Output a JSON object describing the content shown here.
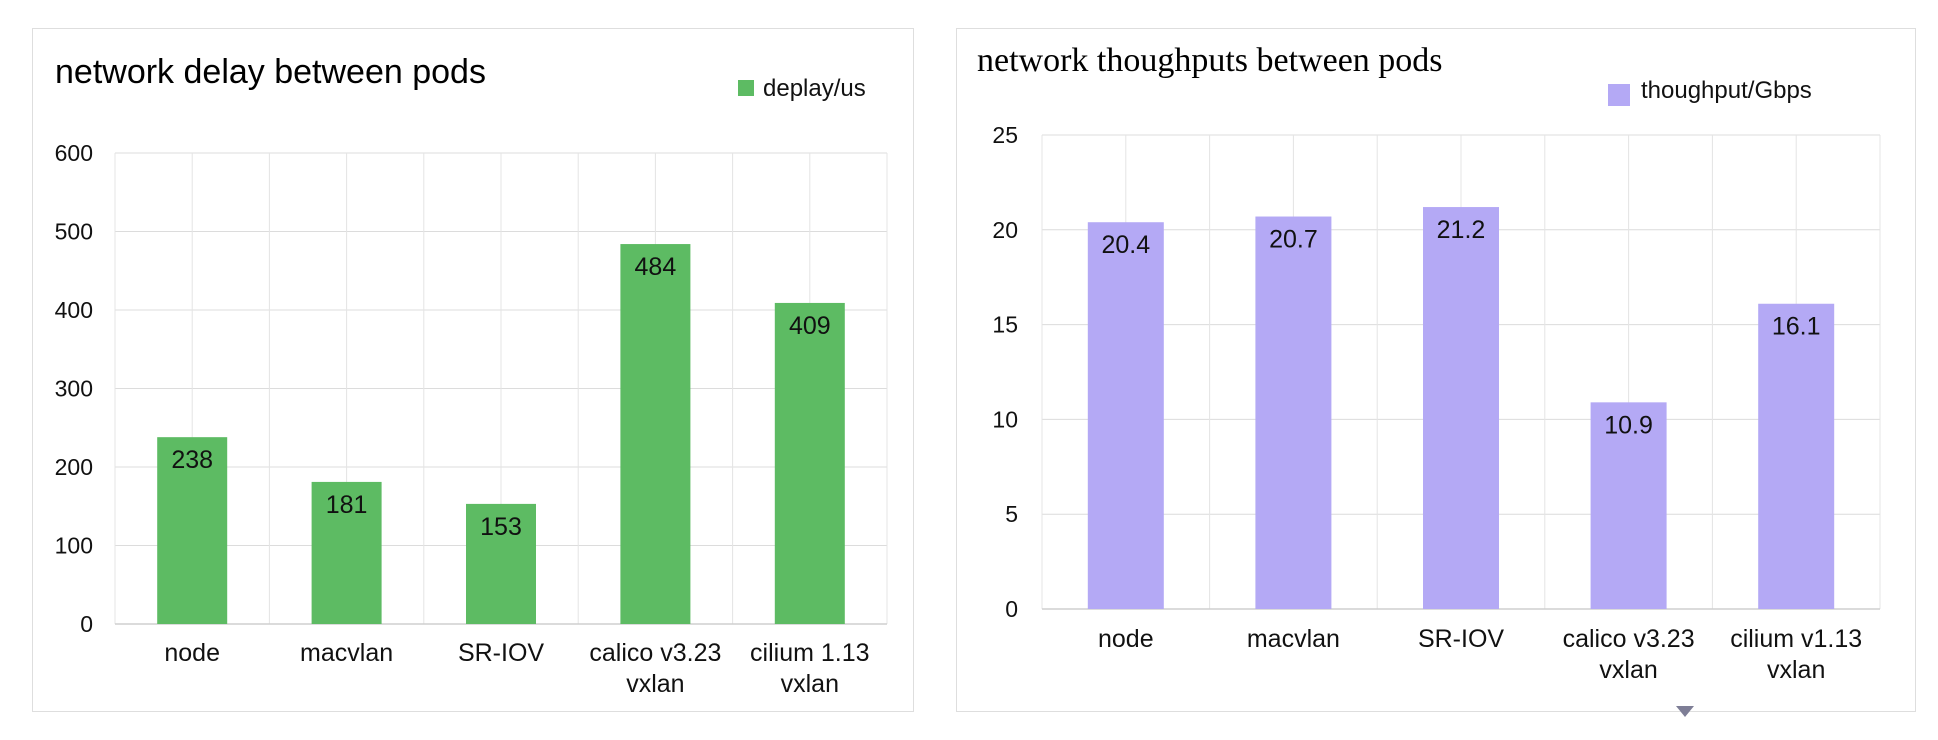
{
  "chart_data": [
    {
      "type": "bar",
      "title": "network delay between pods",
      "legend": {
        "label": "deplay/us",
        "color": "#5dbb63",
        "position": "top-right"
      },
      "categories": [
        [
          "node"
        ],
        [
          "macvlan"
        ],
        [
          "SR-IOV"
        ],
        [
          "calico v3.23",
          "vxlan"
        ],
        [
          "cilium 1.13",
          "vxlan"
        ]
      ],
      "values": [
        238,
        181,
        153,
        484,
        409
      ],
      "ylim": [
        0,
        600
      ],
      "yticks": [
        0,
        100,
        200,
        300,
        400,
        500,
        600
      ],
      "grid": true,
      "xlabel": "",
      "ylabel": ""
    },
    {
      "type": "bar",
      "title": "network thoughputs between pods",
      "legend": {
        "label": "thoughput/Gbps",
        "color": "#b4a9f5",
        "position": "top-right"
      },
      "categories": [
        [
          "node"
        ],
        [
          "macvlan"
        ],
        [
          "SR-IOV"
        ],
        [
          "calico v3.23",
          "vxlan"
        ],
        [
          "cilium v1.13",
          "vxlan"
        ]
      ],
      "values": [
        20.4,
        20.7,
        21.2,
        10.9,
        16.1
      ],
      "ylim": [
        0,
        25
      ],
      "yticks": [
        0,
        5,
        10,
        15,
        20,
        25
      ],
      "grid": true,
      "xlabel": "",
      "ylabel": ""
    }
  ]
}
